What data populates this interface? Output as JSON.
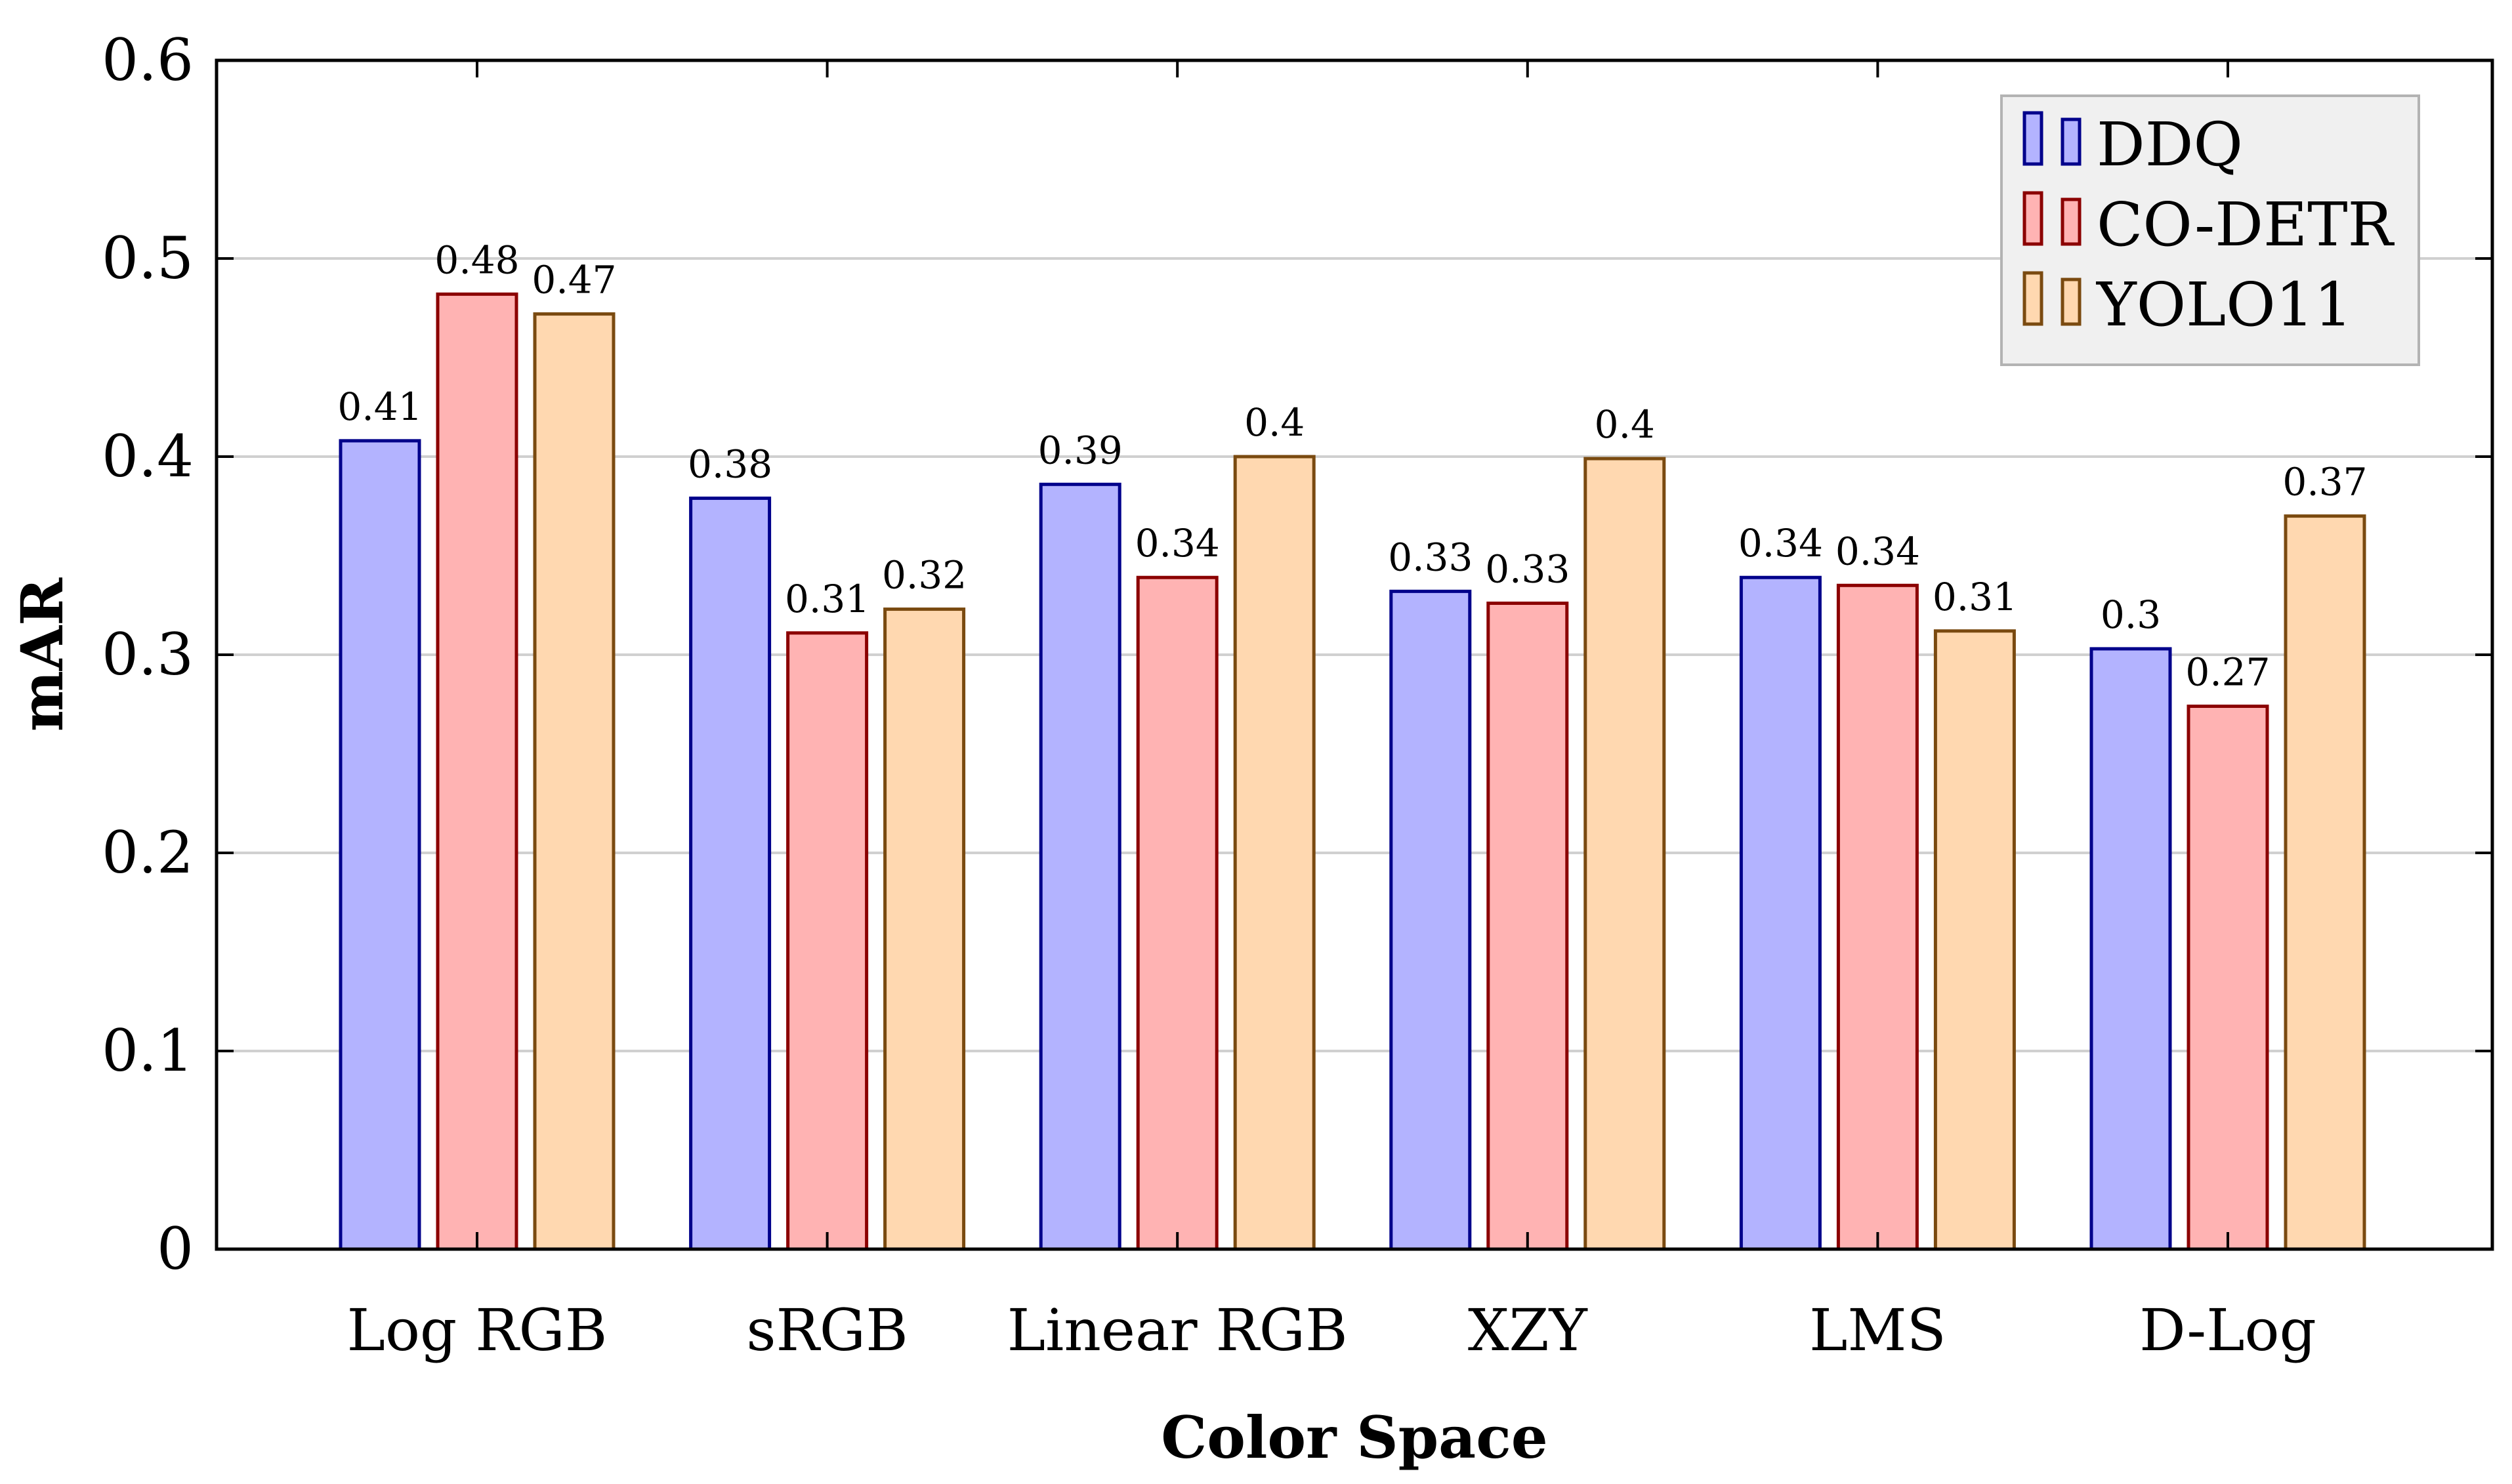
{
  "chart_data": {
    "type": "bar",
    "title": "",
    "xlabel": "Color Space",
    "ylabel": "mAR",
    "ylim": [
      0,
      0.6
    ],
    "yticks": [
      "0",
      "0.1",
      "0.2",
      "0.3",
      "0.4",
      "0.5",
      "0.6"
    ],
    "grid": "horizontal",
    "legend_position": "top-right",
    "categories": [
      "Log RGB",
      "sRGB",
      "Linear RGB",
      "XZY",
      "LMS",
      "D-Log"
    ],
    "series": [
      {
        "name": "DDQ",
        "fill": "#b3b3ff",
        "stroke": "#00008b",
        "values": [
          0.408,
          0.379,
          0.386,
          0.332,
          0.339,
          0.303
        ],
        "labels": [
          "0.41",
          "0.38",
          "0.39",
          "0.33",
          "0.34",
          "0.3"
        ]
      },
      {
        "name": "CO-DETR",
        "fill": "#ffb3b3",
        "stroke": "#8b0000",
        "values": [
          0.482,
          0.311,
          0.339,
          0.326,
          0.335,
          0.274
        ],
        "labels": [
          "0.48",
          "0.31",
          "0.34",
          "0.33",
          "0.34",
          "0.27"
        ]
      },
      {
        "name": "YOLO11",
        "fill": "#ffd8b0",
        "stroke": "#7a4a10",
        "values": [
          0.472,
          0.323,
          0.4,
          0.399,
          0.312,
          0.37
        ],
        "labels": [
          "0.47",
          "0.32",
          "0.4",
          "0.4",
          "0.31",
          "0.37"
        ]
      }
    ]
  }
}
